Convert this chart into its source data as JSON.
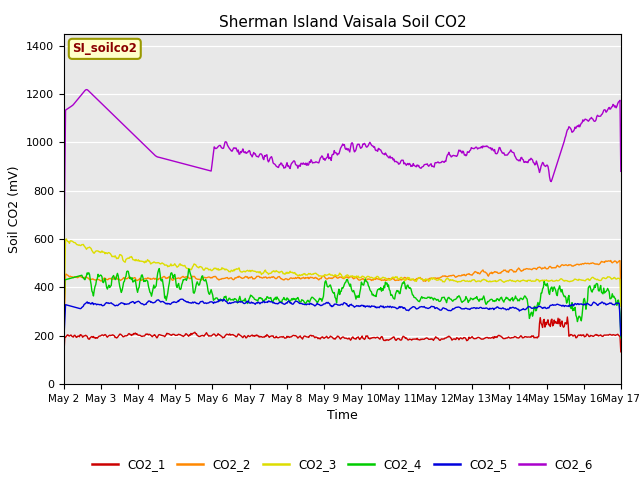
{
  "title": "Sherman Island Vaisala Soil CO2",
  "xlabel": "Time",
  "ylabel": "Soil CO2 (mV)",
  "ylim": [
    0,
    1450
  ],
  "yticks": [
    0,
    200,
    400,
    600,
    800,
    1000,
    1200,
    1400
  ],
  "bg_color": "#e8e8e8",
  "legend_label": "SI_soilco2",
  "series_colors": {
    "CO2_1": "#cc0000",
    "CO2_2": "#ff8800",
    "CO2_3": "#dddd00",
    "CO2_4": "#00cc00",
    "CO2_5": "#0000dd",
    "CO2_6": "#aa00cc"
  },
  "xtick_labels": [
    "May 2",
    "May 3",
    "May 4",
    "May 5",
    "May 6",
    "May 7",
    "May 8",
    "May 9",
    "May 10",
    "May 11",
    "May 12",
    "May 13",
    "May 14",
    "May 15",
    "May 16",
    "May 17"
  ],
  "n_days": 15,
  "pts_per_day": 48
}
